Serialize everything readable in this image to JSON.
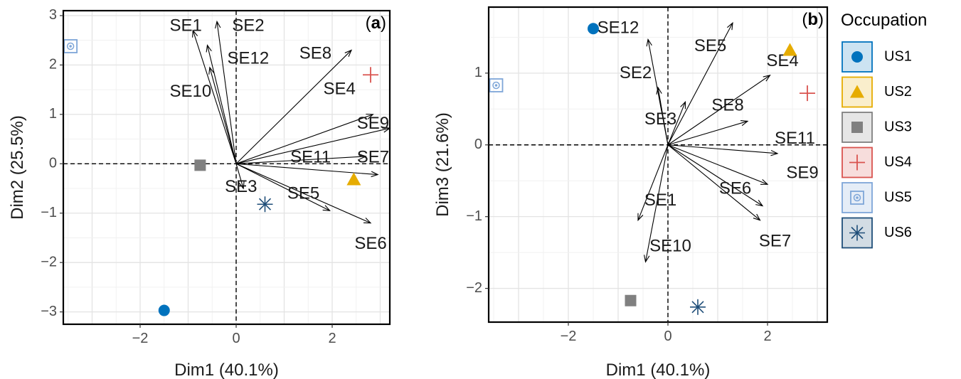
{
  "legend": {
    "title": "Occupation",
    "items": [
      {
        "label": "US1",
        "color": "#0072BD",
        "shape": "circle"
      },
      {
        "label": "US2",
        "color": "#E6AC00",
        "shape": "triangle"
      },
      {
        "label": "US3",
        "color": "#808080",
        "shape": "square"
      },
      {
        "label": "US4",
        "color": "#D9534F",
        "shape": "plus"
      },
      {
        "label": "US5",
        "color": "#7EA6D8",
        "shape": "boxed-circle"
      },
      {
        "label": "US6",
        "color": "#1F4E79",
        "shape": "asterisk"
      }
    ]
  },
  "chart_data": [
    {
      "type": "scatter",
      "panel_label": "a",
      "xlabel": "Dim1 (40.1%)",
      "ylabel": "Dim2 (25.5%)",
      "xlim": [
        -3.6,
        3.2
      ],
      "ylim": [
        -3.25,
        3.1
      ],
      "xticks": [
        -2,
        0,
        2
      ],
      "yticks": [
        -3,
        -2,
        -1,
        0,
        1,
        2,
        3
      ],
      "grid": true,
      "reference_lines": "dashed at x=0 and y=0",
      "points": [
        {
          "group": "US1",
          "x": -1.5,
          "y": -2.97
        },
        {
          "group": "US2",
          "x": 2.45,
          "y": -0.32
        },
        {
          "group": "US3",
          "x": -0.75,
          "y": -0.03
        },
        {
          "group": "US4",
          "x": 2.8,
          "y": 1.8
        },
        {
          "group": "US5",
          "x": -3.45,
          "y": 2.38
        },
        {
          "group": "US6",
          "x": 0.6,
          "y": -0.82
        }
      ],
      "vectors": [
        {
          "name": "SE1",
          "x": -0.9,
          "y": 2.7,
          "lx": -1.05,
          "ly": 2.78
        },
        {
          "name": "SE2",
          "x": -0.4,
          "y": 2.88,
          "lx": 0.25,
          "ly": 2.78
        },
        {
          "name": "SE12",
          "x": -0.6,
          "y": 2.4,
          "lx": 0.25,
          "ly": 2.12
        },
        {
          "name": "SE10",
          "x": -0.55,
          "y": 1.95,
          "lx": -0.95,
          "ly": 1.45
        },
        {
          "name": "SE8",
          "x": 2.4,
          "y": 2.3,
          "lx": 1.65,
          "ly": 2.22
        },
        {
          "name": "SE4",
          "x": 2.85,
          "y": 1.0,
          "lx": 2.15,
          "ly": 1.5
        },
        {
          "name": "SE9",
          "x": 3.2,
          "y": 0.72,
          "lx": 2.85,
          "ly": 0.8
        },
        {
          "name": "SE7",
          "x": 2.95,
          "y": -0.22,
          "lx": 2.85,
          "ly": 0.12
        },
        {
          "name": "SE11",
          "x": 2.7,
          "y": 0.15,
          "lx": 1.55,
          "ly": 0.12
        },
        {
          "name": "SE3",
          "x": 0.15,
          "y": -0.5,
          "lx": 0.1,
          "ly": -0.48
        },
        {
          "name": "SE5",
          "x": 1.95,
          "y": -0.95,
          "lx": 1.4,
          "ly": -0.62
        },
        {
          "name": "SE6",
          "x": 2.8,
          "y": -1.2,
          "lx": 2.8,
          "ly": -1.63
        }
      ]
    },
    {
      "type": "scatter",
      "panel_label": "b",
      "xlabel": "Dim1 (40.1%)",
      "ylabel": "Dim3 (21.6%)",
      "xlim": [
        -3.6,
        3.2
      ],
      "ylim": [
        -2.47,
        1.92
      ],
      "xticks": [
        -2,
        0,
        2
      ],
      "yticks": [
        -2,
        -1,
        0,
        1
      ],
      "grid": true,
      "reference_lines": "dashed at x=0 and y=0",
      "points": [
        {
          "group": "US1",
          "x": -1.5,
          "y": 1.62
        },
        {
          "group": "US2",
          "x": 2.45,
          "y": 1.32
        },
        {
          "group": "US3",
          "x": -0.75,
          "y": -2.17
        },
        {
          "group": "US4",
          "x": 2.8,
          "y": 0.72
        },
        {
          "group": "US5",
          "x": -3.45,
          "y": 0.83
        },
        {
          "group": "US6",
          "x": 0.6,
          "y": -2.26
        }
      ],
      "vectors": [
        {
          "name": "SE12",
          "x": -0.4,
          "y": 1.47,
          "lx": -1.0,
          "ly": 1.62
        },
        {
          "name": "SE5",
          "x": 1.3,
          "y": 1.7,
          "lx": 0.85,
          "ly": 1.37
        },
        {
          "name": "SE4",
          "x": 2.05,
          "y": 0.97,
          "lx": 2.3,
          "ly": 1.16
        },
        {
          "name": "SE2",
          "x": -0.2,
          "y": 0.8,
          "lx": -0.65,
          "ly": 0.99
        },
        {
          "name": "SE3",
          "x": 0.35,
          "y": 0.6,
          "lx": -0.15,
          "ly": 0.35
        },
        {
          "name": "SE8",
          "x": 1.6,
          "y": 0.33,
          "lx": 1.2,
          "ly": 0.54
        },
        {
          "name": "SE11",
          "x": 2.2,
          "y": -0.12,
          "lx": 2.55,
          "ly": 0.08
        },
        {
          "name": "SE9",
          "x": 2.0,
          "y": -0.55,
          "lx": 2.7,
          "ly": -0.4
        },
        {
          "name": "SE6",
          "x": 1.9,
          "y": -0.85,
          "lx": 1.35,
          "ly": -0.62
        },
        {
          "name": "SE7",
          "x": 1.85,
          "y": -1.05,
          "lx": 2.15,
          "ly": -1.35
        },
        {
          "name": "SE1",
          "x": -0.6,
          "y": -1.05,
          "lx": -0.15,
          "ly": -0.78
        },
        {
          "name": "SE10",
          "x": -0.45,
          "y": -1.63,
          "lx": 0.05,
          "ly": -1.42
        }
      ]
    }
  ]
}
